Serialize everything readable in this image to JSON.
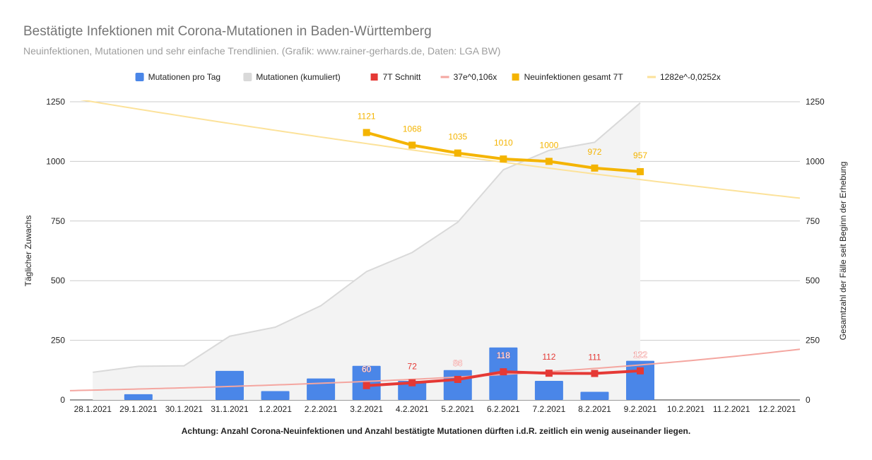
{
  "chart_data": {
    "type": "combo",
    "title": "Bestätigte Infektionen mit Corona-Mutationen in Baden-Württemberg",
    "subtitle": "Neuinfektionen, Mutationen und sehr einfache Trendlinien.  (Grafik: www.rainer-gerhards.de, Daten: LGA BW)",
    "ylabel_left": "Täglicher Zuwachs",
    "ylabel_right": "Gesamtzahl der Fälle seit Beginn der Erhebung",
    "ylim": [
      0,
      1250
    ],
    "yticks": [
      "0",
      "250",
      "500",
      "750",
      "1000",
      "1250"
    ],
    "grid": true,
    "legend_position": "top",
    "categories": [
      "28.1.2021",
      "29.1.2021",
      "30.1.2021",
      "31.1.2021",
      "1.2.2021",
      "2.2.2021",
      "3.2.2021",
      "4.2.2021",
      "5.2.2021",
      "6.2.2021",
      "7.2.2021",
      "8.2.2021",
      "9.2.2021",
      "10.2.2021",
      "11.2.2021",
      "12.2.2021"
    ],
    "series": [
      {
        "name": "Mutationen pro Tag",
        "kind": "bar",
        "axis": "left",
        "color": "#4a86e8",
        "values": [
          0,
          24,
          0,
          122,
          37,
          90,
          143,
          80,
          125,
          220,
          80,
          34,
          164,
          null,
          null,
          null
        ]
      },
      {
        "name": "Mutationen (kumuliert)",
        "kind": "area",
        "axis": "right",
        "color": "#d9d9d9",
        "values": [
          116,
          141,
          143,
          267,
          305,
          395,
          538,
          618,
          745,
          965,
          1046,
          1080,
          1245,
          null,
          null,
          null
        ]
      },
      {
        "name": "7T Schnitt",
        "kind": "line",
        "axis": "left",
        "color": "#e53935",
        "values": [
          null,
          null,
          null,
          null,
          null,
          null,
          60,
          72,
          86,
          118,
          112,
          111,
          122,
          null,
          null,
          null
        ],
        "labels": [
          "",
          "",
          "",
          "",
          "",
          "",
          "60",
          "72",
          "86",
          "118",
          "112",
          "111",
          "122",
          "",
          "",
          ""
        ]
      },
      {
        "name": "37e^0,106x",
        "kind": "trend",
        "axis": "left",
        "color": "#f4a6a0",
        "x_range": [
          0.5,
          16.5
        ],
        "a": 37,
        "b": 0.106
      },
      {
        "name": "Neuinfektionen gesamt 7T",
        "kind": "line",
        "axis": "left",
        "color": "#f4b400",
        "values": [
          null,
          null,
          null,
          null,
          null,
          null,
          1121,
          1068,
          1035,
          1010,
          1000,
          972,
          957,
          null,
          null,
          null
        ],
        "labels": [
          "",
          "",
          "",
          "",
          "",
          "",
          "1121",
          "1068",
          "1035",
          "1010",
          "1000",
          "972",
          "957",
          "",
          "",
          ""
        ]
      },
      {
        "name": "1282e^-0,0252x",
        "kind": "trend",
        "axis": "left",
        "color": "#fce29a",
        "x_range": [
          0.5,
          16.5
        ],
        "a": 1282,
        "b": -0.0252
      }
    ],
    "annotation": "Achtung: Anzahl Corona-Neuinfektionen und Anzahl bestätigte Mutationen dürften i.d.R. zeitlich ein wenig auseinander liegen."
  }
}
